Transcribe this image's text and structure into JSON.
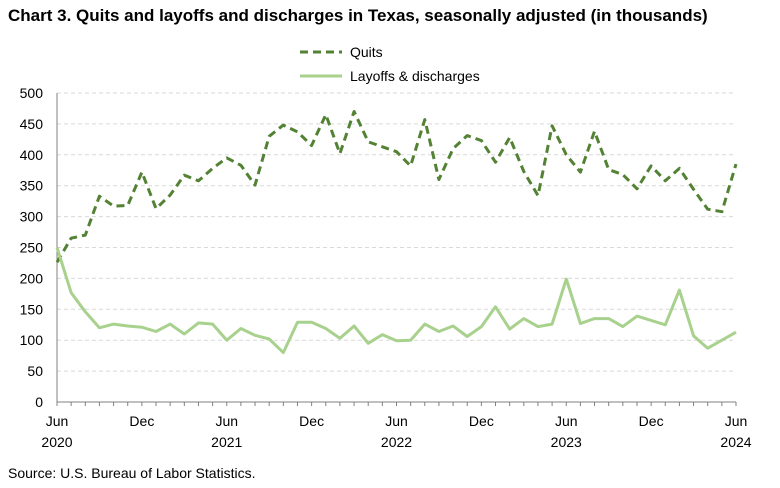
{
  "title": "Chart 3. Quits and layoffs and discharges in Texas, seasonally adjusted (in thousands)",
  "source": "Source: U.S. Bureau of Labor Statistics.",
  "colors": {
    "quits": "#548235",
    "layoffs": "#a9d18e",
    "grid": "#d9d9d9",
    "axis": "#808080"
  },
  "chart_data": {
    "type": "line",
    "x": [
      "2020-06",
      "2020-07",
      "2020-08",
      "2020-09",
      "2020-10",
      "2020-11",
      "2020-12",
      "2021-01",
      "2021-02",
      "2021-03",
      "2021-04",
      "2021-05",
      "2021-06",
      "2021-07",
      "2021-08",
      "2021-09",
      "2021-10",
      "2021-11",
      "2021-12",
      "2022-01",
      "2022-02",
      "2022-03",
      "2022-04",
      "2022-05",
      "2022-06",
      "2022-07",
      "2022-08",
      "2022-09",
      "2022-10",
      "2022-11",
      "2022-12",
      "2023-01",
      "2023-02",
      "2023-03",
      "2023-04",
      "2023-05",
      "2023-06",
      "2023-07",
      "2023-08",
      "2023-09",
      "2023-10",
      "2023-11",
      "2023-12",
      "2024-01",
      "2024-02",
      "2024-03",
      "2024-04",
      "2024-05",
      "2024-06"
    ],
    "x_tick_labels": [
      {
        "month": "Jun",
        "year": "2020",
        "index": 0
      },
      {
        "month": "Dec",
        "year": "",
        "index": 6
      },
      {
        "month": "Jun",
        "year": "2021",
        "index": 12
      },
      {
        "month": "Dec",
        "year": "",
        "index": 18
      },
      {
        "month": "Jun",
        "year": "2022",
        "index": 24
      },
      {
        "month": "Dec",
        "year": "",
        "index": 30
      },
      {
        "month": "Jun",
        "year": "2023",
        "index": 36
      },
      {
        "month": "Dec",
        "year": "",
        "index": 42
      },
      {
        "month": "Jun",
        "year": "2024",
        "index": 48
      }
    ],
    "ylim": [
      0,
      500
    ],
    "yticks": [
      0,
      50,
      100,
      150,
      200,
      250,
      300,
      350,
      400,
      450,
      500
    ],
    "grid": true,
    "legend_position": "top-center",
    "series": [
      {
        "name": "Quits",
        "style": "dashed",
        "values": [
          226,
          265,
          270,
          333,
          317,
          318,
          372,
          313,
          335,
          367,
          358,
          378,
          395,
          383,
          351,
          430,
          448,
          437,
          415,
          465,
          402,
          470,
          421,
          413,
          405,
          382,
          457,
          360,
          410,
          431,
          423,
          388,
          428,
          373,
          334,
          447,
          400,
          372,
          438,
          376,
          368,
          345,
          382,
          358,
          378,
          344,
          312,
          308,
          385
        ]
      },
      {
        "name": "Layoffs & discharges",
        "style": "solid",
        "values": [
          250,
          177,
          146,
          120,
          126,
          123,
          121,
          114,
          126,
          110,
          128,
          126,
          100,
          119,
          108,
          102,
          80,
          129,
          129,
          119,
          103,
          123,
          95,
          109,
          99,
          100,
          126,
          114,
          123,
          106,
          122,
          154,
          118,
          135,
          122,
          126,
          199,
          127,
          135,
          135,
          122,
          139,
          132,
          125,
          181,
          107,
          87,
          100,
          113
        ]
      }
    ]
  }
}
